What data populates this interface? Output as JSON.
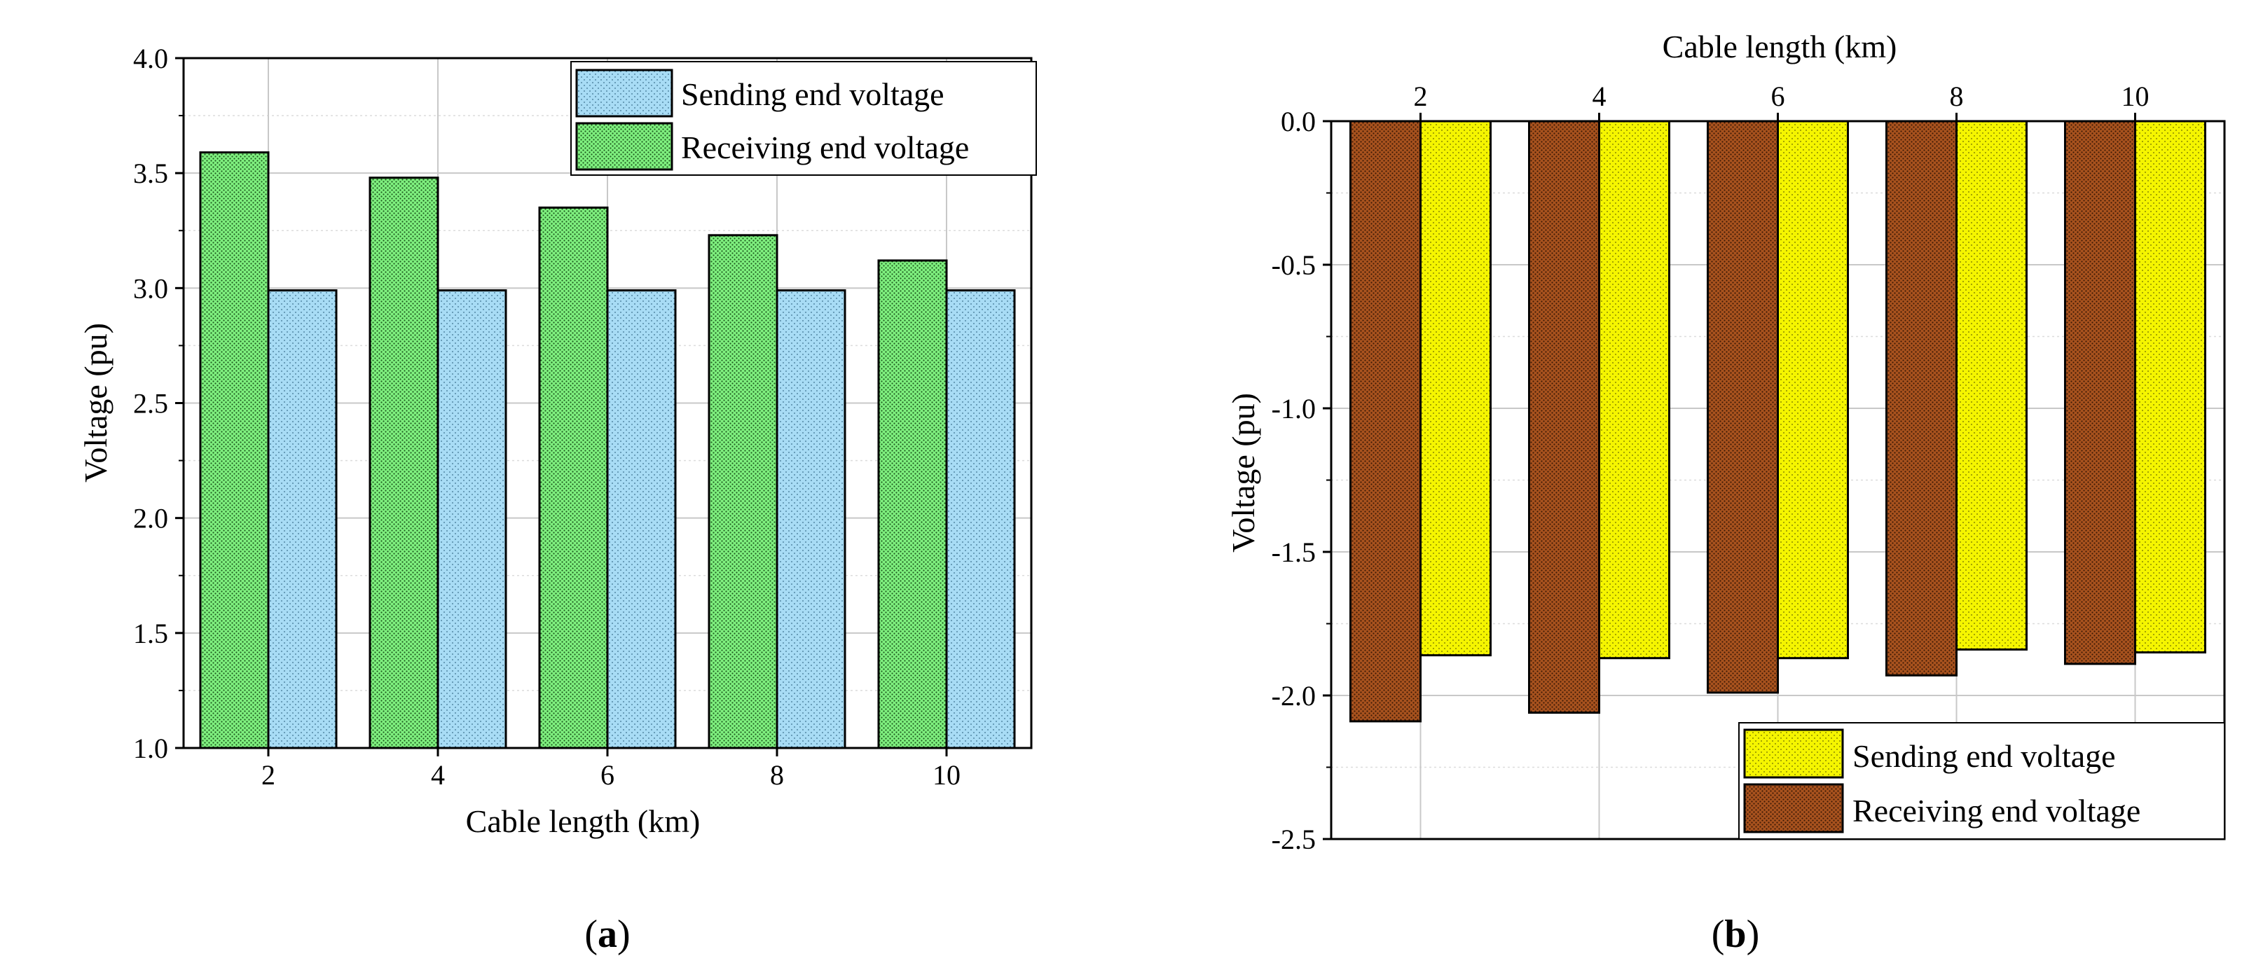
{
  "chart_data": [
    {
      "type": "bar",
      "panel_label": "a",
      "title": "",
      "xlabel": "Cable length (km)",
      "ylabel": "Voltage (pu)",
      "categories": [
        "2",
        "4",
        "6",
        "8",
        "10"
      ],
      "yticks": [
        "1.0",
        "1.5",
        "2.0",
        "2.5",
        "3.0",
        "3.5",
        "4.0"
      ],
      "ylim": [
        1.0,
        4.0
      ],
      "x_axis_position": "bottom",
      "grid": true,
      "legend_position": "top-right",
      "series": [
        {
          "name": "Receiving end voltage",
          "values": [
            3.59,
            3.48,
            3.35,
            3.23,
            3.12
          ],
          "color": "#7ff07f",
          "pattern": "dense-dots"
        },
        {
          "name": "Sending end voltage",
          "values": [
            2.99,
            2.99,
            2.99,
            2.99,
            2.99
          ],
          "color": "#a8dcf5",
          "pattern": "sparse-dots"
        }
      ],
      "legend_order": [
        "Sending end voltage",
        "Receiving end voltage"
      ]
    },
    {
      "type": "bar",
      "panel_label": "b",
      "title": "",
      "xlabel": "Cable length (km)",
      "ylabel": "Voltage (pu)",
      "categories": [
        "2",
        "4",
        "6",
        "8",
        "10"
      ],
      "yticks": [
        "0.0",
        "-0.5",
        "-1.0",
        "-1.5",
        "-2.0",
        "-2.5"
      ],
      "ylim": [
        -2.5,
        0.0
      ],
      "x_axis_position": "top",
      "grid": true,
      "legend_position": "bottom-right",
      "series": [
        {
          "name": "Receiving end voltage",
          "values": [
            -2.09,
            -2.06,
            -1.99,
            -1.93,
            -1.89
          ],
          "color": "#a8521e",
          "pattern": "dense-dots"
        },
        {
          "name": "Sending end voltage",
          "values": [
            -1.86,
            -1.87,
            -1.87,
            -1.84,
            -1.85
          ],
          "color": "#f5f500",
          "pattern": "sparse-dots"
        }
      ],
      "legend_order": [
        "Sending end voltage",
        "Receiving end voltage"
      ]
    }
  ]
}
